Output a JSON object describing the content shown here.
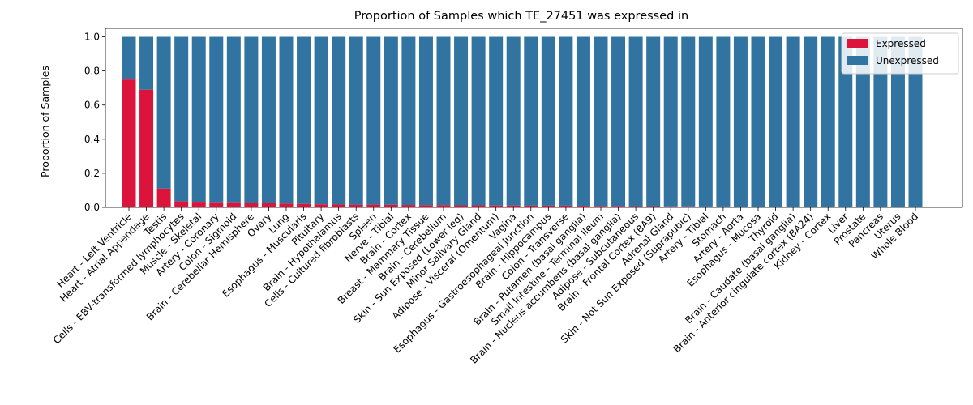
{
  "chart_data": {
    "type": "bar",
    "stacked": true,
    "title": "Proportion of Samples which TE_27451 was expressed in",
    "xlabel": "",
    "ylabel": "Proportion of Samples",
    "ylim": [
      0,
      1.05
    ],
    "yticks": [
      "0.0",
      "0.2",
      "0.4",
      "0.6",
      "0.8",
      "1.0"
    ],
    "legend_position": "top-right",
    "categories": [
      "Heart - Left Ventricle",
      "Heart - Atrial Appendage",
      "Testis",
      "Cells - EBV-transformed lymphocytes",
      "Muscle - Skeletal",
      "Artery - Coronary",
      "Colon - Sigmoid",
      "Brain - Cerebellar Hemisphere",
      "Ovary",
      "Lung",
      "Esophagus - Muscularis",
      "Pituitary",
      "Brain - Hypothalamus",
      "Cells - Cultured fibroblasts",
      "Spleen",
      "Nerve - Tibial",
      "Brain - Cortex",
      "Breast - Mammary Tissue",
      "Brain - Cerebellum",
      "Skin - Sun Exposed (Lower leg)",
      "Minor Salivary Gland",
      "Adipose - Visceral (Omentum)",
      "Vagina",
      "Esophagus - Gastroesophageal Junction",
      "Brain - Hippocampus",
      "Colon - Transverse",
      "Brain - Putamen (basal ganglia)",
      "Small Intestine - Terminal Ileum",
      "Brain - Nucleus accumbens (basal ganglia)",
      "Adipose - Subcutaneous",
      "Brain - Frontal Cortex (BA9)",
      "Adrenal Gland",
      "Skin - Not Sun Exposed (Suprapubic)",
      "Artery - Tibial",
      "Stomach",
      "Artery - Aorta",
      "Esophagus - Mucosa",
      "Thyroid",
      "Brain - Caudate (basal ganglia)",
      "Brain - Anterior cingulate cortex (BA24)",
      "Kidney - Cortex",
      "Liver",
      "Prostate",
      "Pancreas",
      "Uterus",
      "Whole Blood"
    ],
    "series": [
      {
        "name": "Expressed",
        "color": "#dc143c",
        "values": [
          0.75,
          0.69,
          0.11,
          0.035,
          0.033,
          0.03,
          0.03,
          0.028,
          0.025,
          0.022,
          0.02,
          0.018,
          0.017,
          0.016,
          0.016,
          0.015,
          0.014,
          0.013,
          0.013,
          0.012,
          0.012,
          0.011,
          0.011,
          0.01,
          0.01,
          0.01,
          0.009,
          0.008,
          0.008,
          0.007,
          0.007,
          0.006,
          0.006,
          0.005,
          0.005,
          0.004,
          0.003,
          0.002,
          0,
          0,
          0,
          0,
          0,
          0,
          0,
          0
        ]
      },
      {
        "name": "Unexpressed",
        "color": "#3274a1",
        "values": [
          0.25,
          0.31,
          0.89,
          0.965,
          0.967,
          0.97,
          0.97,
          0.972,
          0.975,
          0.978,
          0.98,
          0.982,
          0.983,
          0.984,
          0.984,
          0.985,
          0.986,
          0.987,
          0.987,
          0.988,
          0.988,
          0.989,
          0.989,
          0.99,
          0.99,
          0.99,
          0.991,
          0.992,
          0.992,
          0.993,
          0.993,
          0.994,
          0.994,
          0.995,
          0.995,
          0.996,
          0.997,
          0.998,
          1,
          1,
          1,
          1,
          1,
          1,
          1,
          1
        ]
      }
    ]
  }
}
